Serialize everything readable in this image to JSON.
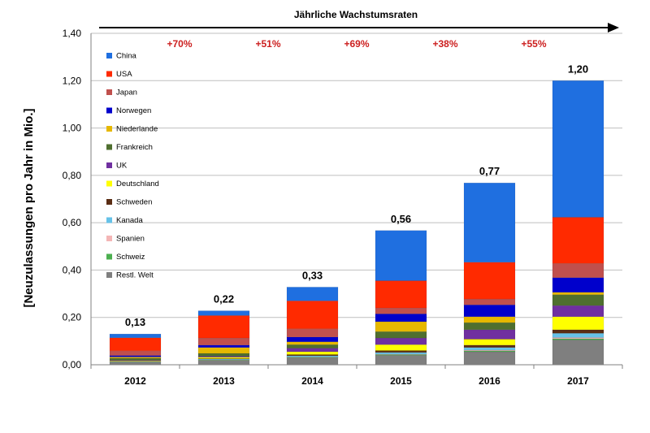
{
  "chart_data": {
    "type": "bar",
    "stacked": true,
    "title": "Jährliche Wachstumsraten",
    "ylabel": "[Neuzulassungen pro Jahr in Mio.]",
    "xlabel": "",
    "ylim": [
      0,
      1.4
    ],
    "yticks": [
      "0,00",
      "0,20",
      "0,40",
      "0,60",
      "0,80",
      "1,00",
      "1,20",
      "1,40"
    ],
    "categories": [
      "2012",
      "2013",
      "2014",
      "2015",
      "2016",
      "2017"
    ],
    "totals_labels": [
      "0,13",
      "0,22",
      "0,33",
      "0,56",
      "0,77",
      "1,20"
    ],
    "growth_labels": [
      "+70%",
      "+51%",
      "+69%",
      "+38%",
      "+55%"
    ],
    "grid": true,
    "legend_position": "left",
    "series": [
      {
        "name": "Restl. Welt",
        "color": "#7f7f7f",
        "values": [
          0.01,
          0.018,
          0.03,
          0.04,
          0.055,
          0.105
        ]
      },
      {
        "name": "Schweiz",
        "color": "#4caf50",
        "values": [
          0.0,
          0.002,
          0.002,
          0.003,
          0.004,
          0.005
        ]
      },
      {
        "name": "Spanien",
        "color": "#f4b6b6",
        "values": [
          0.0,
          0.001,
          0.001,
          0.002,
          0.003,
          0.005
        ]
      },
      {
        "name": "Kanada",
        "color": "#66c2e8",
        "values": [
          0.002,
          0.003,
          0.005,
          0.007,
          0.011,
          0.018
        ]
      },
      {
        "name": "Schweden",
        "color": "#5a2d14",
        "values": [
          0.001,
          0.002,
          0.005,
          0.008,
          0.01,
          0.015
        ]
      },
      {
        "name": "Deutschland",
        "color": "#ffff00",
        "values": [
          0.003,
          0.006,
          0.012,
          0.025,
          0.025,
          0.055
        ]
      },
      {
        "name": "UK",
        "color": "#7030a0",
        "values": [
          0.003,
          0.004,
          0.015,
          0.028,
          0.04,
          0.047
        ]
      },
      {
        "name": "Frankreich",
        "color": "#4f6f2f",
        "values": [
          0.009,
          0.012,
          0.015,
          0.027,
          0.03,
          0.046
        ]
      },
      {
        "name": "Niederlande",
        "color": "#e6b800",
        "values": [
          0.005,
          0.025,
          0.012,
          0.042,
          0.025,
          0.01
        ]
      },
      {
        "name": "Norwegen",
        "color": "#0000cc",
        "values": [
          0.006,
          0.01,
          0.02,
          0.033,
          0.05,
          0.062
        ]
      },
      {
        "name": "Japan",
        "color": "#c0504d",
        "values": [
          0.02,
          0.03,
          0.035,
          0.025,
          0.025,
          0.06
        ]
      },
      {
        "name": "USA",
        "color": "#ff2a00",
        "values": [
          0.055,
          0.095,
          0.118,
          0.115,
          0.155,
          0.195
        ]
      },
      {
        "name": "China",
        "color": "#1f6fe0",
        "values": [
          0.016,
          0.02,
          0.058,
          0.212,
          0.335,
          0.577
        ]
      }
    ],
    "legend_order": [
      "China",
      "USA",
      "Japan",
      "Norwegen",
      "Niederlande",
      "Frankreich",
      "UK",
      "Deutschland",
      "Schweden",
      "Kanada",
      "Spanien",
      "Schweiz",
      "Restl. Welt"
    ]
  }
}
